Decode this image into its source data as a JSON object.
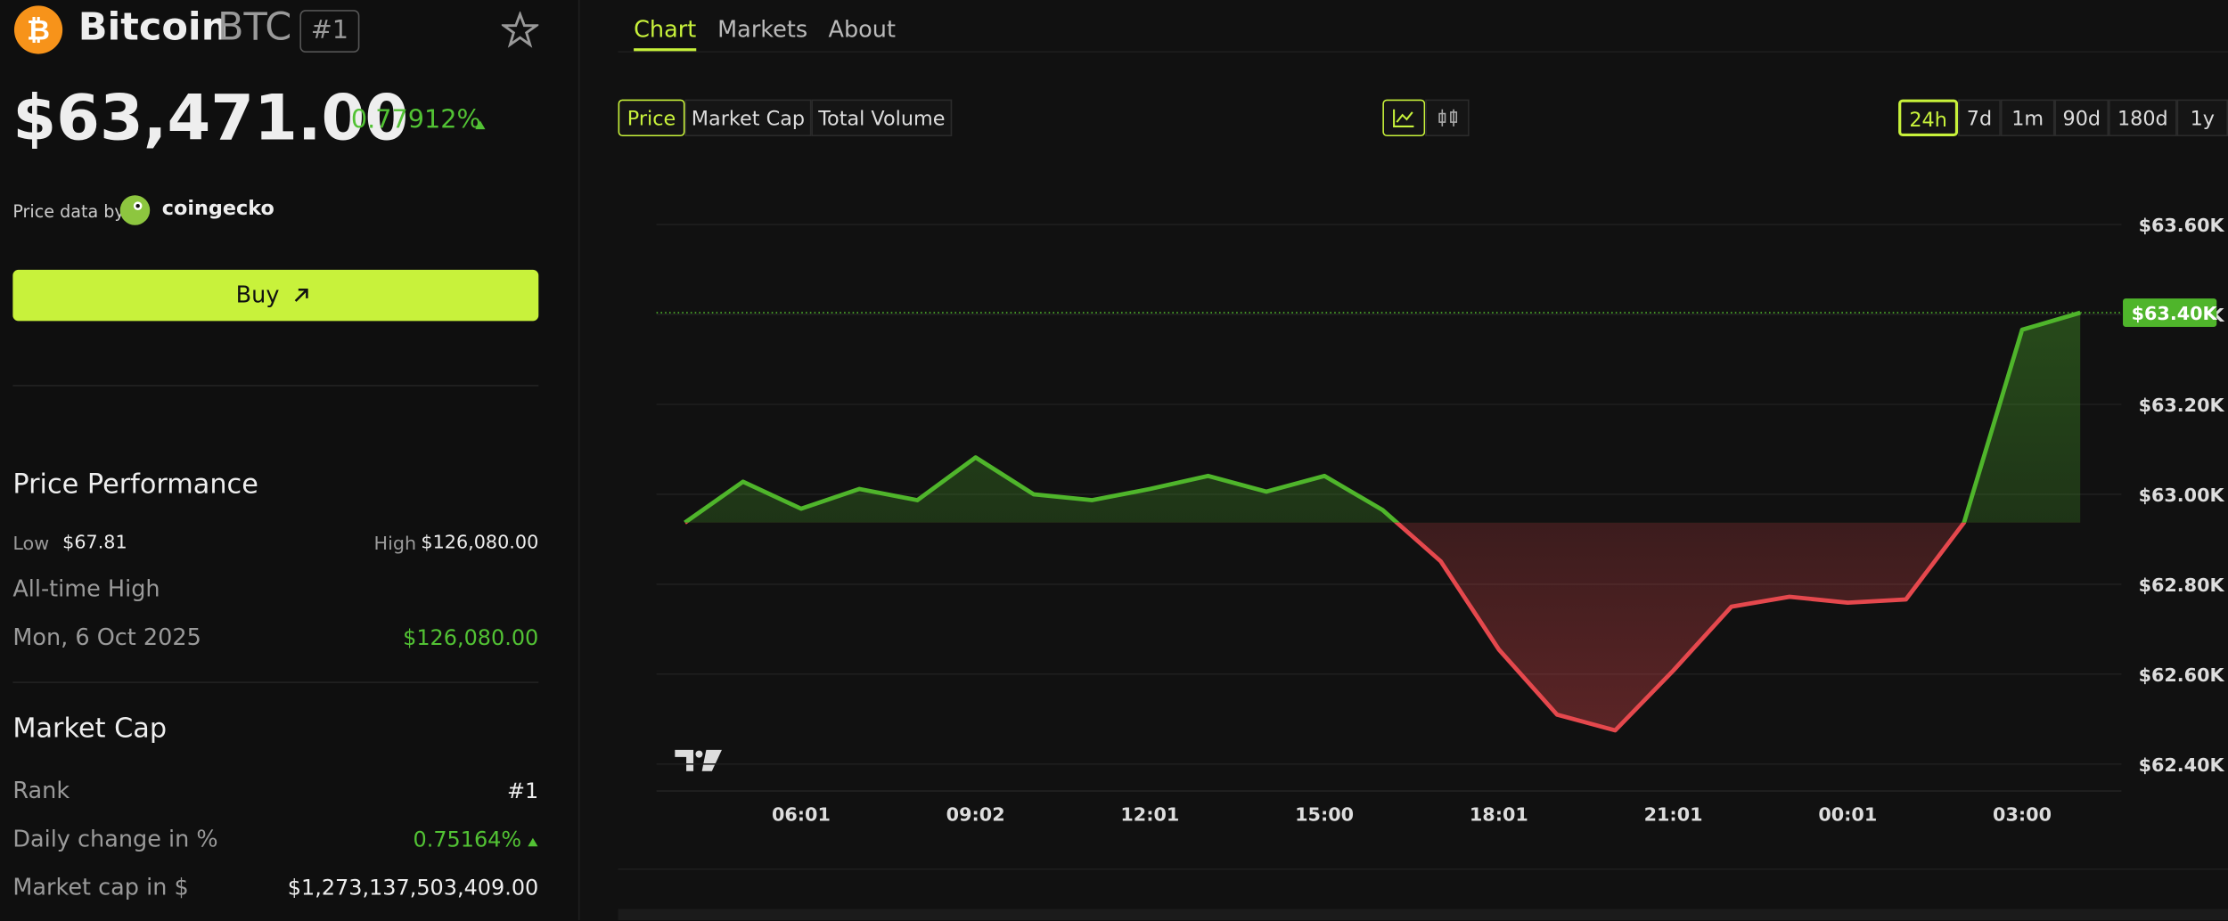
{
  "header": {
    "name": "Bitcoin",
    "symbol": "BTC",
    "rank": "#1"
  },
  "price": {
    "value": "$63,471.00",
    "change": "0.77912%"
  },
  "attribution": {
    "prefix": "Price data by",
    "provider": "coingecko"
  },
  "buy_button": "Buy",
  "performance": {
    "title": "Price Performance",
    "low_label": "Low",
    "low": "$67.81",
    "high_label": "High",
    "high": "$126,080.00",
    "ath_label": "All-time High",
    "ath_date": "Mon, 6 Oct 2025",
    "ath_value": "$126,080.00"
  },
  "market_cap": {
    "title": "Market Cap",
    "rows": [
      [
        "Rank",
        "#1"
      ],
      [
        "Daily change in %",
        "0.75164%"
      ],
      [
        "Market cap in $",
        "$1,273,137,503,409.00"
      ]
    ]
  },
  "tabs": [
    "Chart",
    "Markets",
    "About"
  ],
  "metric_tabs": [
    "Price",
    "Market Cap",
    "Total Volume"
  ],
  "ranges": [
    "24h",
    "7d",
    "1m",
    "90d",
    "180d",
    "1y"
  ],
  "chart_data": {
    "type": "line",
    "categories": [
      null,
      null,
      "06:01",
      null,
      null,
      "09:02",
      null,
      null,
      "12:01",
      null,
      null,
      "15:00",
      null,
      null,
      "18:01",
      null,
      null,
      "21:01",
      null,
      null,
      "00:01",
      null,
      null,
      "03:00",
      null
    ],
    "values": [
      62937,
      63028,
      62968,
      63012,
      62987,
      63082,
      63000,
      62987,
      63012,
      63041,
      63006,
      63041,
      62965,
      62851,
      62655,
      62510,
      62475,
      62608,
      62750,
      62772,
      62759,
      62766,
      62937,
      63366,
      63404
    ],
    "color_up": "#4fb52b",
    "color_down": "#e5484d",
    "ylim": [
      62340,
      63673
    ],
    "yticks": [
      {
        "value": 62400,
        "label": "$62.40K"
      },
      {
        "value": 62600,
        "label": "$62.60K"
      },
      {
        "value": 62800,
        "label": "$62.80K"
      },
      {
        "value": 63000,
        "label": "$63.00K"
      },
      {
        "value": 63200,
        "label": "$63.20K"
      },
      {
        "value": 63400,
        "label": "$63.40K"
      },
      {
        "value": 63600,
        "label": "$63.60K"
      }
    ],
    "grid": true,
    "price_marker": {
      "value": 63404,
      "label": "$63.40K"
    }
  }
}
